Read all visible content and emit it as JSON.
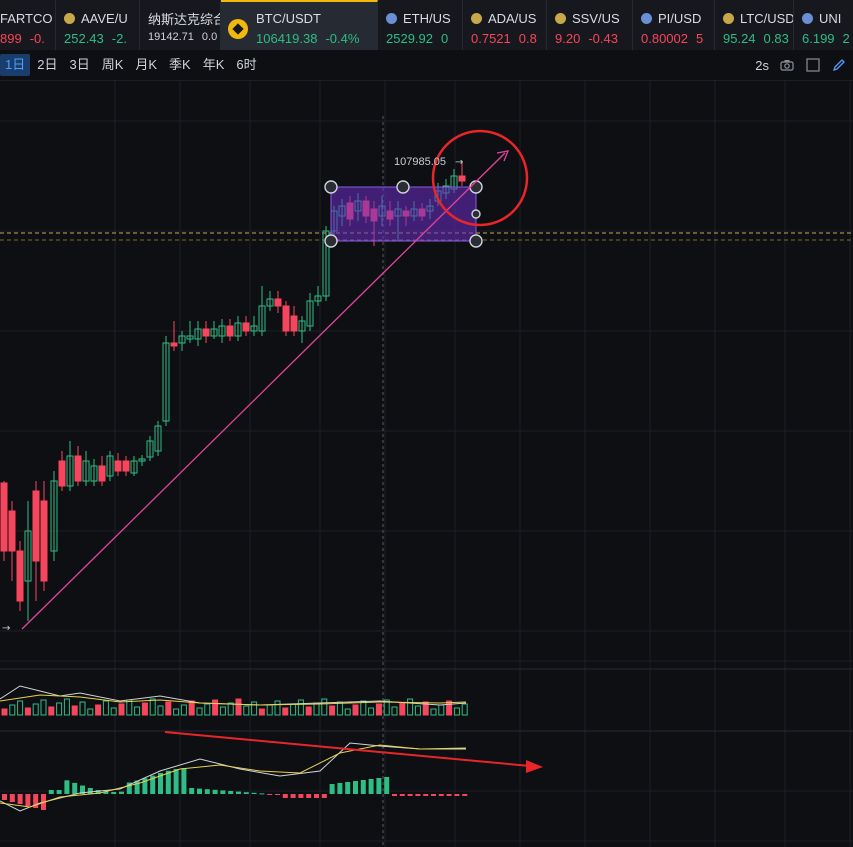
{
  "tickers": [
    {
      "symbol": "FARTCO",
      "price": "899",
      "change": "-0.",
      "dir": "down",
      "dot": "",
      "w": 56
    },
    {
      "symbol": "AAVE/U",
      "price": "252.43",
      "change": "-2.",
      "dir": "up",
      "dot": "#c9a84c",
      "w": 84
    },
    {
      "symbol": "纳斯达克综合",
      "price": "19142.71",
      "change": "0.0",
      "dir": "neutral",
      "dot": "",
      "w": 81
    },
    {
      "symbol": "BTC/USDT",
      "price": "106419.38",
      "change": "-0.4%",
      "dir": "up",
      "dot": "bnb",
      "w": 157,
      "active": true
    },
    {
      "symbol": "ETH/US",
      "price": "2529.92",
      "change": "0",
      "dir": "up",
      "dot": "#6b8fd6",
      "w": 85
    },
    {
      "symbol": "ADA/US",
      "price": "0.7521",
      "change": "0.8",
      "dir": "down",
      "dot": "#c9a84c",
      "w": 84
    },
    {
      "symbol": "SSV/US",
      "price": "9.20",
      "change": "-0.43",
      "dir": "down",
      "dot": "#c9a84c",
      "w": 86
    },
    {
      "symbol": "PI/USD",
      "price": "0.80002",
      "change": "5",
      "dir": "down",
      "dot": "#6b8fd6",
      "w": 82
    },
    {
      "symbol": "LTC/USD",
      "price": "95.24",
      "change": "0.83",
      "dir": "up",
      "dot": "#c9a84c",
      "w": 79
    },
    {
      "symbol": "UNI",
      "price": "6.199",
      "change": "2",
      "dir": "up",
      "dot": "#6b8fd6",
      "w": 60
    }
  ],
  "timeframes": [
    "1日",
    "2日",
    "3日",
    "周K",
    "月K",
    "季K",
    "年K",
    "6时"
  ],
  "active_timeframe": 0,
  "toolbar": {
    "interval": "2s"
  },
  "chart": {
    "price_label": "107985.05",
    "arrow_glyph": "→"
  },
  "colors": {
    "up": "#2ebd85",
    "down": "#f6465d",
    "accent": "#f0b90b",
    "selection": "#6a2ec4",
    "trend": "#e0459a",
    "annotation": "#e8262a"
  }
}
